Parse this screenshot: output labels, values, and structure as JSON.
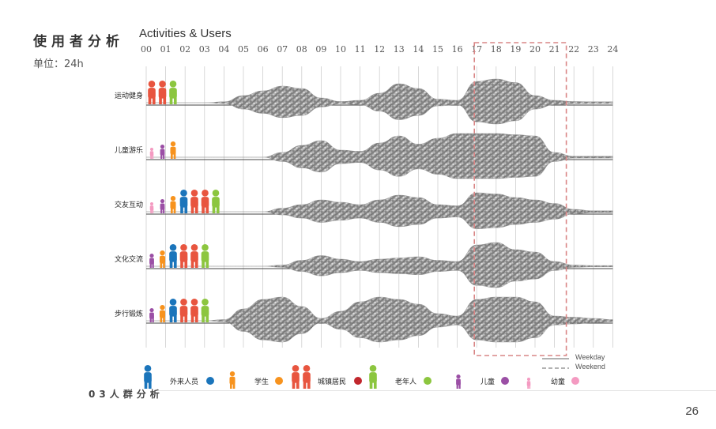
{
  "header": {
    "title": "使用者分析",
    "unit_label": "单位：24h",
    "subtitle": "Activities & Users"
  },
  "hours": [
    "00",
    "01",
    "02",
    "03",
    "04",
    "05",
    "06",
    "07",
    "08",
    "09",
    "10",
    "11",
    "12",
    "13",
    "14",
    "15",
    "16",
    "17",
    "18",
    "19",
    "20",
    "21",
    "22",
    "23",
    "24"
  ],
  "activities": [
    {
      "label": "运动健身",
      "users": [
        "adult",
        "adult",
        "senior"
      ],
      "intensity": [
        0,
        0,
        0,
        0,
        0.04,
        0.3,
        0.5,
        0.7,
        0.6,
        0.2,
        0.05,
        0.1,
        0.4,
        0.8,
        0.6,
        0.15,
        0.1,
        0.9,
        1.0,
        0.85,
        0.3,
        0.1,
        0.05,
        0.04,
        0.04
      ]
    },
    {
      "label": "儿童游乐",
      "users": [
        "toddler",
        "child",
        "student"
      ],
      "intensity": [
        0,
        0,
        0,
        0,
        0,
        0,
        0,
        0.2,
        0.5,
        0.7,
        0.3,
        0.25,
        0.6,
        0.9,
        0.55,
        0.8,
        1.0,
        1.0,
        1.0,
        0.95,
        0.9,
        0.2,
        0.04,
        0.04,
        0.04
      ]
    },
    {
      "label": "交友互动",
      "users": [
        "toddler",
        "child",
        "student",
        "visitor",
        "adult",
        "adult",
        "senior"
      ],
      "intensity": [
        0,
        0,
        0,
        0,
        0,
        0,
        0,
        0.15,
        0.3,
        0.5,
        0.4,
        0.3,
        0.5,
        0.7,
        0.6,
        0.3,
        0.25,
        0.8,
        0.75,
        0.6,
        0.5,
        0.35,
        0.1,
        0.04,
        0.04
      ]
    },
    {
      "label": "文化交流",
      "users": [
        "child",
        "student",
        "visitor",
        "adult",
        "adult",
        "senior"
      ],
      "intensity": [
        0,
        0,
        0,
        0,
        0,
        0,
        0,
        0.05,
        0.25,
        0.45,
        0.3,
        0.2,
        0.3,
        0.35,
        0.4,
        0.25,
        0.2,
        0.9,
        1.0,
        0.7,
        0.6,
        0.2,
        0.05,
        0.03,
        0.03
      ]
    },
    {
      "label": "步行锻炼",
      "users": [
        "child",
        "student",
        "visitor",
        "adult",
        "adult",
        "senior"
      ],
      "intensity": [
        0,
        0,
        0,
        0,
        0.05,
        0.5,
        0.9,
        1.0,
        0.6,
        0.1,
        0.4,
        0.8,
        1.0,
        0.9,
        0.7,
        0.3,
        0.2,
        0.9,
        1.0,
        1.0,
        0.8,
        0.2,
        0.15,
        0.1,
        0.05
      ]
    }
  ],
  "highlight": {
    "start_hour": 17,
    "end_hour": 21,
    "color": "#d98585"
  },
  "legend": {
    "groups": [
      {
        "label": "外来人员",
        "color": "#1b75bb",
        "icon": "visitor"
      },
      {
        "label": "学生",
        "color": "#f7931e",
        "icon": "student"
      },
      {
        "label": "城镇居民",
        "color": "#c1272d",
        "icon": "adult"
      },
      {
        "label": "老年人",
        "color": "#8cc63f",
        "icon": "senior"
      },
      {
        "label": "儿童",
        "color": "#9b4fa5",
        "icon": "child"
      },
      {
        "label": "幼童",
        "color": "#f49ac1",
        "icon": "toddler"
      }
    ],
    "lines": [
      {
        "label": "Weekday",
        "style": "solid"
      },
      {
        "label": "Weekend",
        "style": "dashed"
      }
    ]
  },
  "figure_colors": {
    "visitor": "#1b75bb",
    "student": "#f7931e",
    "adult": "#e8553f",
    "senior": "#8cc63f",
    "child": "#9b4fa5",
    "toddler": "#f49ac1"
  },
  "footer": {
    "section": "03人群分析",
    "page_number": "26"
  }
}
